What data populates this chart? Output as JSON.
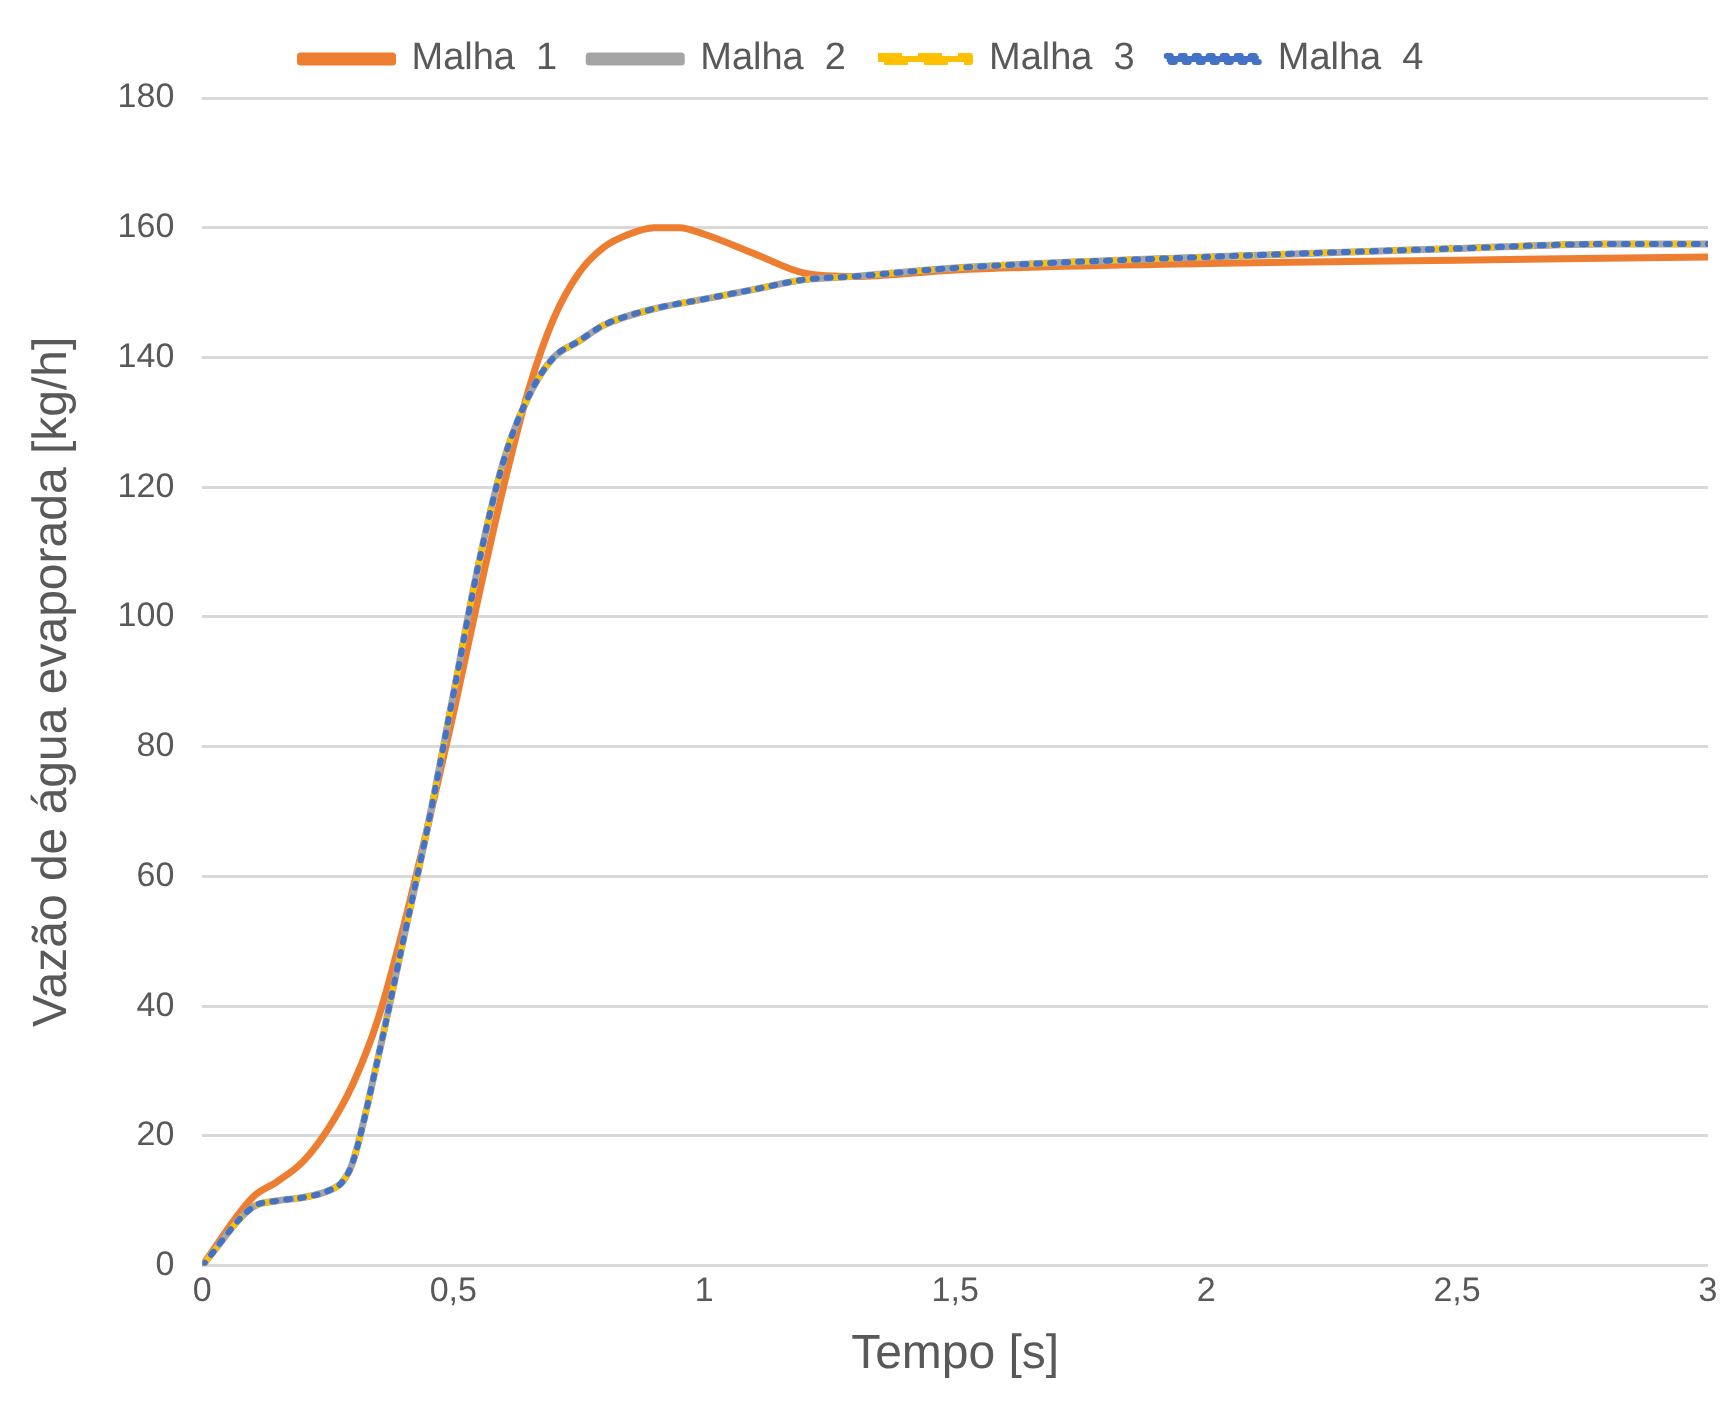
{
  "chart_data": {
    "type": "line",
    "xlabel": "Tempo [s]",
    "ylabel": "Vazão de água evaporada [kg/h]",
    "legend": "top",
    "grid": "y",
    "marker": "none",
    "xlim": [
      0,
      3
    ],
    "xticks": [
      0,
      {
        "value": 0.5,
        "label": "0,5"
      },
      1,
      {
        "value": 1.5,
        "label": "1,5"
      },
      2,
      {
        "value": 2.5,
        "label": "2,5"
      },
      3
    ],
    "ylim": [
      0,
      180
    ],
    "yticks": [
      0,
      20,
      40,
      60,
      80,
      100,
      120,
      140,
      160,
      180
    ],
    "series": [
      {
        "name": "Malha  1",
        "color": "#ed7d31",
        "line_style": "solid",
        "x": [
          0,
          0.1,
          0.15,
          0.2,
          0.25,
          0.3,
          0.35,
          0.4,
          0.45,
          0.5,
          0.55,
          0.6,
          0.65,
          0.7,
          0.75,
          0.8,
          0.85,
          0.9,
          0.95,
          1.0,
          1.1,
          1.2,
          1.3,
          1.5,
          2,
          2.5,
          3
        ],
        "values": [
          0,
          10.5,
          13,
          16,
          21,
          28,
          38,
          52,
          68,
          85,
          103,
          120,
          135,
          146,
          153,
          157,
          159,
          160,
          160,
          159,
          156,
          153,
          152.5,
          153.5,
          154.5,
          155,
          155.5
        ]
      },
      {
        "name": "Malha  2",
        "color": "#a5a5a5",
        "line_style": "solid",
        "x": [
          0,
          0.1,
          0.15,
          0.2,
          0.25,
          0.28,
          0.3,
          0.35,
          0.4,
          0.45,
          0.5,
          0.55,
          0.6,
          0.65,
          0.7,
          0.75,
          0.8,
          0.9,
          1.0,
          1.1,
          1.2,
          1.3,
          1.5,
          2,
          2.5,
          2.8,
          3
        ],
        "values": [
          0,
          9,
          10,
          10.5,
          11.5,
          13,
          16,
          32,
          50,
          68,
          88,
          108,
          124,
          134,
          140,
          142.5,
          145,
          147.5,
          149,
          150.5,
          152,
          152.5,
          153.8,
          155.5,
          156.8,
          157.5,
          157.5
        ]
      },
      {
        "name": "Malha  3",
        "color": "#ffc000",
        "line_style": "dashed",
        "x": [
          0,
          0.1,
          0.15,
          0.2,
          0.25,
          0.28,
          0.3,
          0.35,
          0.4,
          0.45,
          0.5,
          0.55,
          0.6,
          0.65,
          0.7,
          0.75,
          0.8,
          0.9,
          1.0,
          1.1,
          1.2,
          1.3,
          1.5,
          2,
          2.5,
          2.8,
          3
        ],
        "values": [
          0,
          9,
          10,
          10.5,
          11.5,
          13,
          16,
          32,
          50,
          68,
          88,
          108,
          124,
          134,
          140,
          142.5,
          145,
          147.5,
          149,
          150.5,
          152,
          152.5,
          153.8,
          155.5,
          156.8,
          157.5,
          157.5
        ]
      },
      {
        "name": "Malha  4",
        "color": "#4472c4",
        "line_style": "dotted",
        "x": [
          0,
          0.1,
          0.15,
          0.2,
          0.25,
          0.28,
          0.3,
          0.35,
          0.4,
          0.45,
          0.5,
          0.55,
          0.6,
          0.65,
          0.7,
          0.75,
          0.8,
          0.9,
          1.0,
          1.1,
          1.2,
          1.3,
          1.5,
          2,
          2.5,
          2.8,
          3
        ],
        "values": [
          0,
          9,
          10,
          10.5,
          11.5,
          13,
          16,
          32,
          50,
          68,
          88,
          108,
          124,
          134,
          140,
          142.5,
          145,
          147.5,
          149,
          150.5,
          152,
          152.5,
          153.8,
          155.5,
          156.8,
          157.5,
          157.5
        ]
      }
    ]
  }
}
